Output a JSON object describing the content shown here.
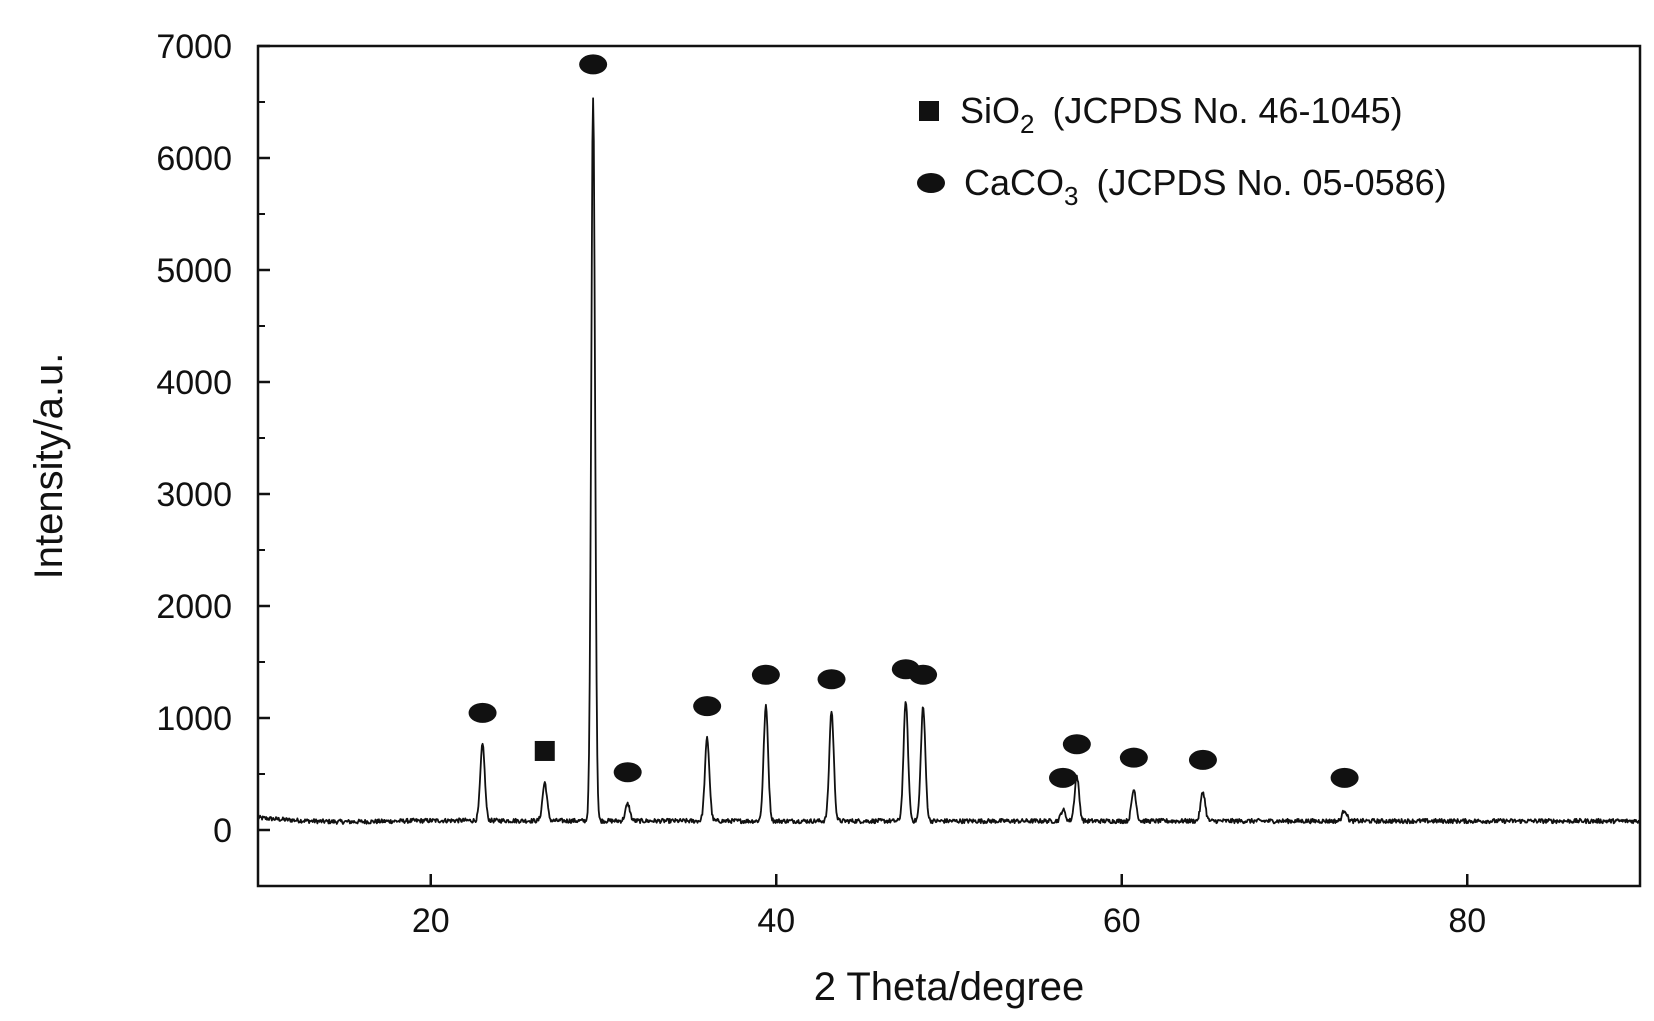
{
  "chart_data": {
    "type": "line",
    "title": "",
    "xlabel": "2 Theta/degree",
    "ylabel": "Intensity/a.u.",
    "xlim": [
      10,
      90
    ],
    "ylim": [
      -500,
      7000
    ],
    "xticks": [
      20,
      40,
      60,
      80
    ],
    "yticks": [
      0,
      1000,
      2000,
      3000,
      4000,
      5000,
      6000,
      7000
    ],
    "grid": false,
    "legend_position": "top-right",
    "legend": [
      {
        "marker": "square",
        "formula": "SiO",
        "subscript": "2",
        "note": "(JCPDS No. 46-1045)"
      },
      {
        "marker": "circle",
        "formula": "CaCO",
        "subscript": "3",
        "note": "(JCPDS No. 05-0586)"
      }
    ],
    "baseline": 80,
    "peaks": [
      {
        "x": 23.0,
        "y": 760,
        "phase": "CaCO3"
      },
      {
        "x": 26.6,
        "y": 420,
        "phase": "SiO2"
      },
      {
        "x": 29.4,
        "y": 6550,
        "phase": "CaCO3"
      },
      {
        "x": 31.4,
        "y": 230,
        "phase": "CaCO3"
      },
      {
        "x": 36.0,
        "y": 820,
        "phase": "CaCO3"
      },
      {
        "x": 39.4,
        "y": 1100,
        "phase": "CaCO3"
      },
      {
        "x": 43.2,
        "y": 1060,
        "phase": "CaCO3"
      },
      {
        "x": 47.5,
        "y": 1150,
        "phase": "CaCO3"
      },
      {
        "x": 48.5,
        "y": 1100,
        "phase": "CaCO3"
      },
      {
        "x": 56.6,
        "y": 180,
        "phase": "CaCO3"
      },
      {
        "x": 57.4,
        "y": 480,
        "phase": "CaCO3"
      },
      {
        "x": 60.7,
        "y": 360,
        "phase": "CaCO3"
      },
      {
        "x": 64.7,
        "y": 340,
        "phase": "CaCO3"
      },
      {
        "x": 72.9,
        "y": 180,
        "phase": "CaCO3"
      }
    ]
  }
}
